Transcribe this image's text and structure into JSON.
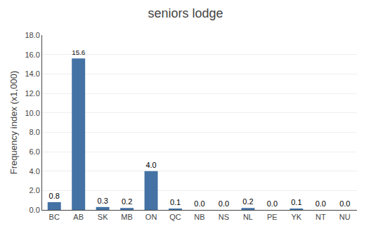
{
  "chart_data": {
    "type": "bar",
    "title": "seniors lodge",
    "ylabel": "Frequency index (x1,000)",
    "categories": [
      "BC",
      "AB",
      "SK",
      "MB",
      "ON",
      "QC",
      "NB",
      "NS",
      "NL",
      "PE",
      "YK",
      "NT",
      "NU"
    ],
    "values": [
      0.8,
      15.6,
      0.3,
      0.2,
      4.0,
      0.1,
      0.0,
      0.0,
      0.2,
      0.0,
      0.1,
      0.0,
      0.0
    ],
    "value_labels": [
      "0.8",
      "15.6",
      "0.3",
      "0.2",
      "4.0",
      "0.1",
      "0.0",
      "0.0",
      "0.2",
      "0.0",
      "0.1",
      "0.0",
      "0.0"
    ],
    "data_labels": true,
    "color": "#4472a4",
    "ylim": [
      0,
      18.0
    ],
    "yticks": [
      {
        "value": 0,
        "label": "0.0"
      },
      {
        "value": 2,
        "label": "2.0"
      },
      {
        "value": 4,
        "label": "4.0"
      },
      {
        "value": 6,
        "label": "6.0"
      },
      {
        "value": 8,
        "label": "8.0"
      },
      {
        "value": 10,
        "label": "10.0"
      },
      {
        "value": 12,
        "label": "12.0"
      },
      {
        "value": 14,
        "label": "14.0"
      },
      {
        "value": 16,
        "label": "16.0"
      },
      {
        "value": 18,
        "label": "18.0"
      }
    ],
    "grid": true
  }
}
